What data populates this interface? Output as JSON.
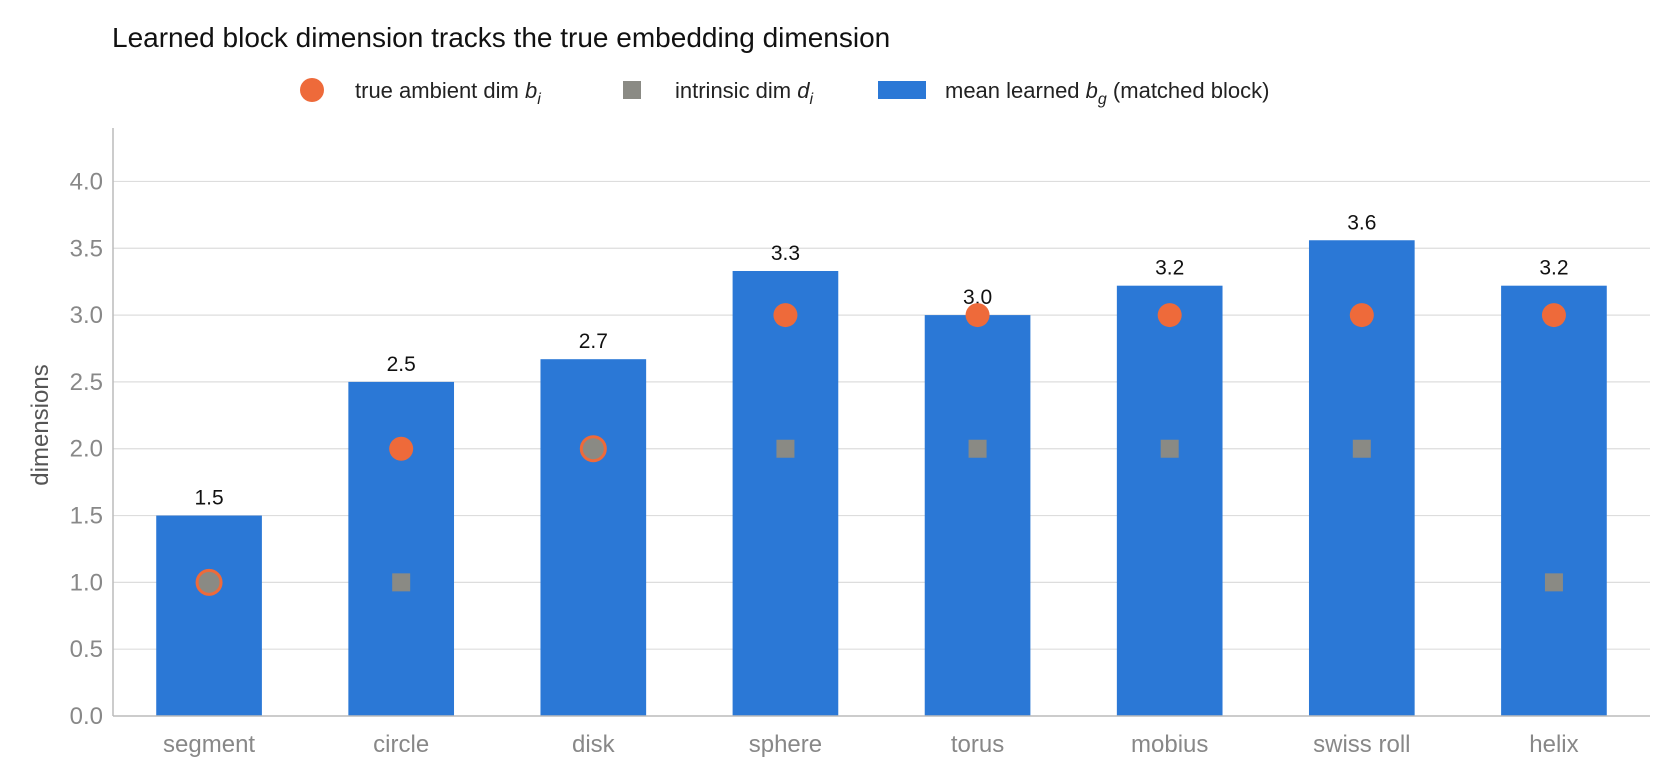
{
  "chart_data": {
    "type": "bar",
    "title": "Learned block dimension tracks the true embedding dimension",
    "xlabel": "",
    "ylabel": "dimensions",
    "ylim": [
      0,
      4.4
    ],
    "yticks": [
      "0.0",
      "0.5",
      "1.0",
      "1.5",
      "2.0",
      "2.5",
      "3.0",
      "3.5",
      "4.0"
    ],
    "grid": true,
    "legend_position": "top",
    "categories": [
      "segment",
      "circle",
      "disk",
      "sphere",
      "torus",
      "mobius",
      "swiss roll",
      "helix"
    ],
    "series": [
      {
        "name": "mean learned b_g (matched block)",
        "legend": {
          "pre": "mean learned ",
          "sym": "b",
          "sub": "g",
          "post": " (matched block)"
        },
        "kind": "bar",
        "color": "#2b78d6",
        "values": [
          1.5,
          2.5,
          2.67,
          3.33,
          3.0,
          3.22,
          3.56,
          3.22
        ],
        "labels": [
          "1.5",
          "2.5",
          "2.7",
          "3.3",
          "3.0",
          "3.2",
          "3.6",
          "3.2"
        ]
      },
      {
        "name": "true ambient dim b_i",
        "legend": {
          "pre": "true ambient dim ",
          "sym": "b",
          "sub": "i",
          "post": ""
        },
        "kind": "circle",
        "color": "#ee6a3a",
        "values": [
          1,
          2,
          2,
          3,
          3,
          3,
          3,
          3
        ]
      },
      {
        "name": "intrinsic dim d_i",
        "legend": {
          "pre": "intrinsic dim ",
          "sym": "d",
          "sub": "i",
          "post": ""
        },
        "kind": "square",
        "color": "#8a8a84",
        "values": [
          1,
          1,
          2,
          2,
          2,
          2,
          2,
          1
        ]
      }
    ]
  }
}
